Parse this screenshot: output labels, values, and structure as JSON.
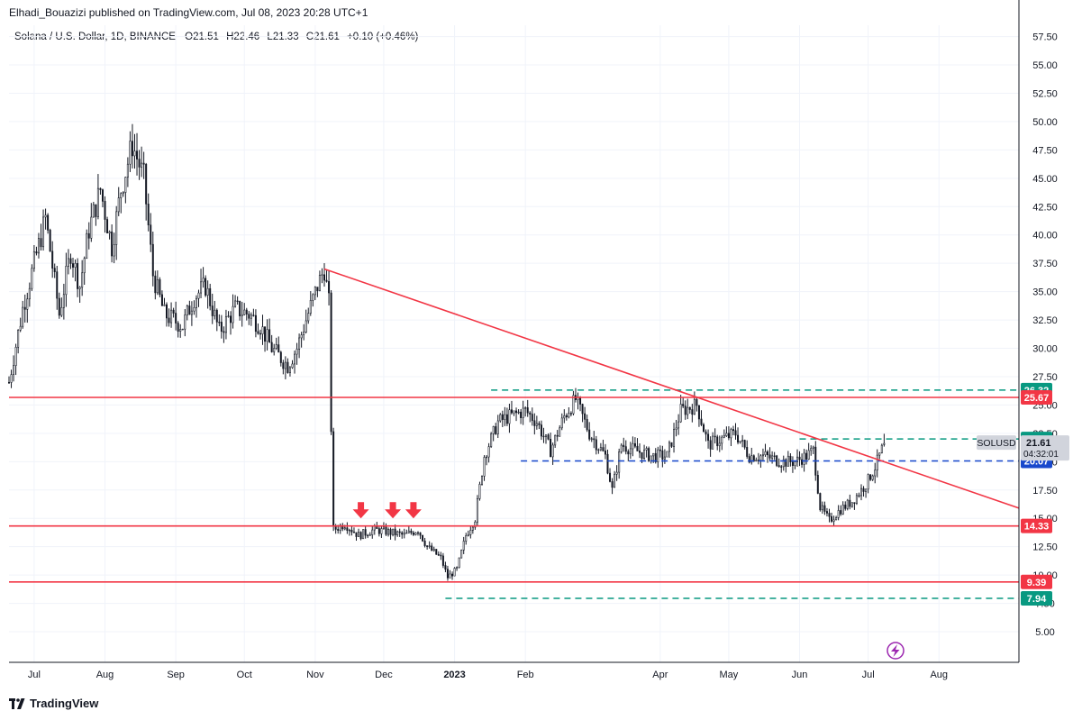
{
  "publisher": "Elhadi_Bouazizi published on TradingView.com, Jul 08, 2023 20:28 UTC+1",
  "symbol": "Solana / U.S. Dollar, 1D, BINANCE",
  "ohlc": {
    "o_label": "O",
    "o": "21.51",
    "h_label": "H",
    "h": "22.46",
    "l_label": "L",
    "l": "21.33",
    "c_label": "C",
    "c": "21.61",
    "change": "+0.10 (+0.46%)"
  },
  "footer": {
    "brand": "TradingView",
    "logo_icon": "tradingview-logo-icon"
  },
  "last_price": {
    "ticker": "SOLUSD",
    "price": "21.61",
    "countdown": "04:32:01"
  },
  "colors": {
    "up": "#131722",
    "down": "#131722",
    "resistance": "#f23645",
    "support_dash": "#089981",
    "blue_dash": "#1848cc",
    "trend": "#f23645",
    "arrow": "#f23645",
    "axis_text": "#131722",
    "grid": "#f0f3fa"
  },
  "chart_data": {
    "type": "candlestick",
    "x_ticks": [
      "Jul",
      "Aug",
      "Sep",
      "Oct",
      "Nov",
      "Dec",
      "2023",
      "Feb",
      "Apr",
      "May",
      "Jun",
      "Jul",
      "Aug"
    ],
    "x_tick_dates": [
      "2022-07-01",
      "2022-08-01",
      "2022-09-01",
      "2022-10-01",
      "2022-11-01",
      "2022-12-01",
      "2023-01-01",
      "2023-02-01",
      "2023-04-01",
      "2023-05-01",
      "2023-06-01",
      "2023-07-01",
      "2023-08-01"
    ],
    "y_ticks": [
      "5.00",
      "7.50",
      "10.00",
      "12.50",
      "15.00",
      "17.50",
      "20.00",
      "22.50",
      "25.00",
      "27.50",
      "30.00",
      "32.50",
      "35.00",
      "37.50",
      "40.00",
      "42.50",
      "45.00",
      "47.50",
      "50.00",
      "52.50",
      "55.00",
      "57.50"
    ],
    "ylim": [
      2.3,
      58.5
    ],
    "xlim": [
      "2022-06-20",
      "2023-09-05"
    ],
    "price_path": [
      [
        "2022-06-20",
        27.0
      ],
      [
        "2022-06-26",
        33.5
      ],
      [
        "2022-07-01",
        37.5
      ],
      [
        "2022-07-06",
        41.5
      ],
      [
        "2022-07-12",
        33.0
      ],
      [
        "2022-07-17",
        38.5
      ],
      [
        "2022-07-21",
        35.5
      ],
      [
        "2022-07-25",
        40.5
      ],
      [
        "2022-07-30",
        44.0
      ],
      [
        "2022-08-04",
        39.0
      ],
      [
        "2022-08-08",
        44.0
      ],
      [
        "2022-08-13",
        48.0
      ],
      [
        "2022-08-18",
        45.0
      ],
      [
        "2022-08-22",
        36.5
      ],
      [
        "2022-08-27",
        33.0
      ],
      [
        "2022-09-04",
        32.0
      ],
      [
        "2022-09-09",
        34.5
      ],
      [
        "2022-09-14",
        35.5
      ],
      [
        "2022-09-20",
        31.5
      ],
      [
        "2022-09-27",
        33.5
      ],
      [
        "2022-10-03",
        33.0
      ],
      [
        "2022-10-08",
        32.0
      ],
      [
        "2022-10-13",
        30.0
      ],
      [
        "2022-10-20",
        28.5
      ],
      [
        "2022-10-24",
        30.0
      ],
      [
        "2022-10-28",
        32.5
      ],
      [
        "2022-11-02",
        35.5
      ],
      [
        "2022-11-05",
        37.0
      ],
      [
        "2022-11-07",
        34.0
      ],
      [
        "2022-11-08",
        23.0
      ],
      [
        "2022-11-09",
        14.0
      ],
      [
        "2022-11-14",
        14.5
      ],
      [
        "2022-11-20",
        13.5
      ],
      [
        "2022-11-27",
        14.0
      ],
      [
        "2022-12-03",
        13.8
      ],
      [
        "2022-12-10",
        13.5
      ],
      [
        "2022-12-16",
        14.0
      ],
      [
        "2022-12-20",
        12.5
      ],
      [
        "2022-12-26",
        11.5
      ],
      [
        "2022-12-29",
        9.8
      ],
      [
        "2023-01-02",
        10.5
      ],
      [
        "2023-01-06",
        13.5
      ],
      [
        "2023-01-10",
        15.0
      ],
      [
        "2023-01-14",
        20.5
      ],
      [
        "2023-01-20",
        23.5
      ],
      [
        "2023-01-25",
        24.0
      ],
      [
        "2023-02-01",
        24.5
      ],
      [
        "2023-02-06",
        23.5
      ],
      [
        "2023-02-12",
        21.0
      ],
      [
        "2023-02-18",
        24.0
      ],
      [
        "2023-02-23",
        25.5
      ],
      [
        "2023-03-01",
        22.5
      ],
      [
        "2023-03-08",
        20.5
      ],
      [
        "2023-03-11",
        17.5
      ],
      [
        "2023-03-15",
        21.5
      ],
      [
        "2023-03-21",
        21.0
      ],
      [
        "2023-03-28",
        20.5
      ],
      [
        "2023-04-04",
        20.5
      ],
      [
        "2023-04-10",
        24.5
      ],
      [
        "2023-04-17",
        25.0
      ],
      [
        "2023-04-22",
        21.5
      ],
      [
        "2023-04-28",
        22.0
      ],
      [
        "2023-05-04",
        22.5
      ],
      [
        "2023-05-10",
        20.5
      ],
      [
        "2023-05-17",
        20.5
      ],
      [
        "2023-05-24",
        20.0
      ],
      [
        "2023-05-30",
        20.0
      ],
      [
        "2023-06-04",
        20.5
      ],
      [
        "2023-06-07",
        21.0
      ],
      [
        "2023-06-10",
        16.0
      ],
      [
        "2023-06-14",
        14.8
      ],
      [
        "2023-06-19",
        15.8
      ],
      [
        "2023-06-24",
        16.5
      ],
      [
        "2023-06-30",
        18.0
      ],
      [
        "2023-07-04",
        19.5
      ],
      [
        "2023-07-08",
        21.6
      ]
    ],
    "last_candle": {
      "date": "2023-07-08",
      "open": 21.51,
      "high": 22.46,
      "low": 21.33,
      "close": 21.61
    },
    "horizontal_levels": [
      {
        "price": 26.32,
        "label": "26.32",
        "style": "dashed",
        "color": "#089981",
        "start": "2023-01-17"
      },
      {
        "price": 25.67,
        "label": "25.67",
        "style": "solid",
        "color": "#f23645",
        "start": "2022-06-20"
      },
      {
        "price": 22.0,
        "label": "22.00",
        "style": "dashed",
        "color": "#089981",
        "start": "2023-06-01"
      },
      {
        "price": 20.07,
        "label": "20.07",
        "style": "dashed",
        "color": "#1848cc",
        "start": "2023-01-30"
      },
      {
        "price": 14.33,
        "label": "14.33",
        "style": "solid",
        "color": "#f23645",
        "start": "2022-06-20"
      },
      {
        "price": 9.39,
        "label": "9.39",
        "style": "solid",
        "color": "#f23645",
        "start": "2022-06-20"
      },
      {
        "price": 7.94,
        "label": "7.94",
        "style": "dashed",
        "color": "#089981",
        "start": "2022-12-28"
      }
    ],
    "trendline": {
      "start": [
        "2022-11-05",
        37.0
      ],
      "end": [
        "2023-09-05",
        15.9
      ],
      "color": "#f23645"
    },
    "down_arrows": [
      {
        "date": "2022-11-21",
        "price": 15.0
      },
      {
        "date": "2022-12-05",
        "price": 15.0
      },
      {
        "date": "2022-12-14",
        "price": 15.0
      }
    ],
    "grid": true
  }
}
